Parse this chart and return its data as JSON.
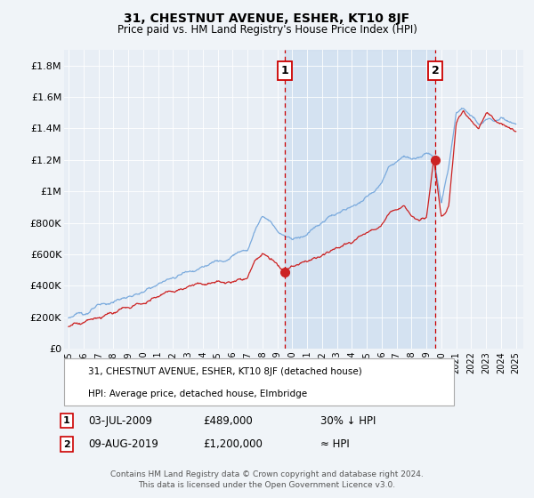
{
  "title": "31, CHESTNUT AVENUE, ESHER, KT10 8JF",
  "subtitle": "Price paid vs. HM Land Registry's House Price Index (HPI)",
  "background_color": "#f0f4f8",
  "plot_bg_color": "#e8eef5",
  "shade_color": "#d0dff0",
  "ylim": [
    0,
    1900000
  ],
  "yticks": [
    0,
    200000,
    400000,
    600000,
    800000,
    1000000,
    1200000,
    1400000,
    1600000,
    1800000
  ],
  "ytick_labels": [
    "£0",
    "£200K",
    "£400K",
    "£600K",
    "£800K",
    "£1M",
    "£1.2M",
    "£1.4M",
    "£1.6M",
    "£1.8M"
  ],
  "xlim_start": 1994.7,
  "xlim_end": 2025.5,
  "sale1_date": 2009.5,
  "sale1_price": 489000,
  "sale1_label": "1",
  "sale2_date": 2019.6,
  "sale2_price": 1200000,
  "sale2_label": "2",
  "red_line_color": "#cc2222",
  "blue_line_color": "#7aaadd",
  "marker_color": "#cc2222",
  "vline_color": "#cc0000",
  "legend_label_red": "31, CHESTNUT AVENUE, ESHER, KT10 8JF (detached house)",
  "legend_label_blue": "HPI: Average price, detached house, Elmbridge",
  "footer1": "Contains HM Land Registry data © Crown copyright and database right 2024.",
  "footer2": "This data is licensed under the Open Government Licence v3.0."
}
